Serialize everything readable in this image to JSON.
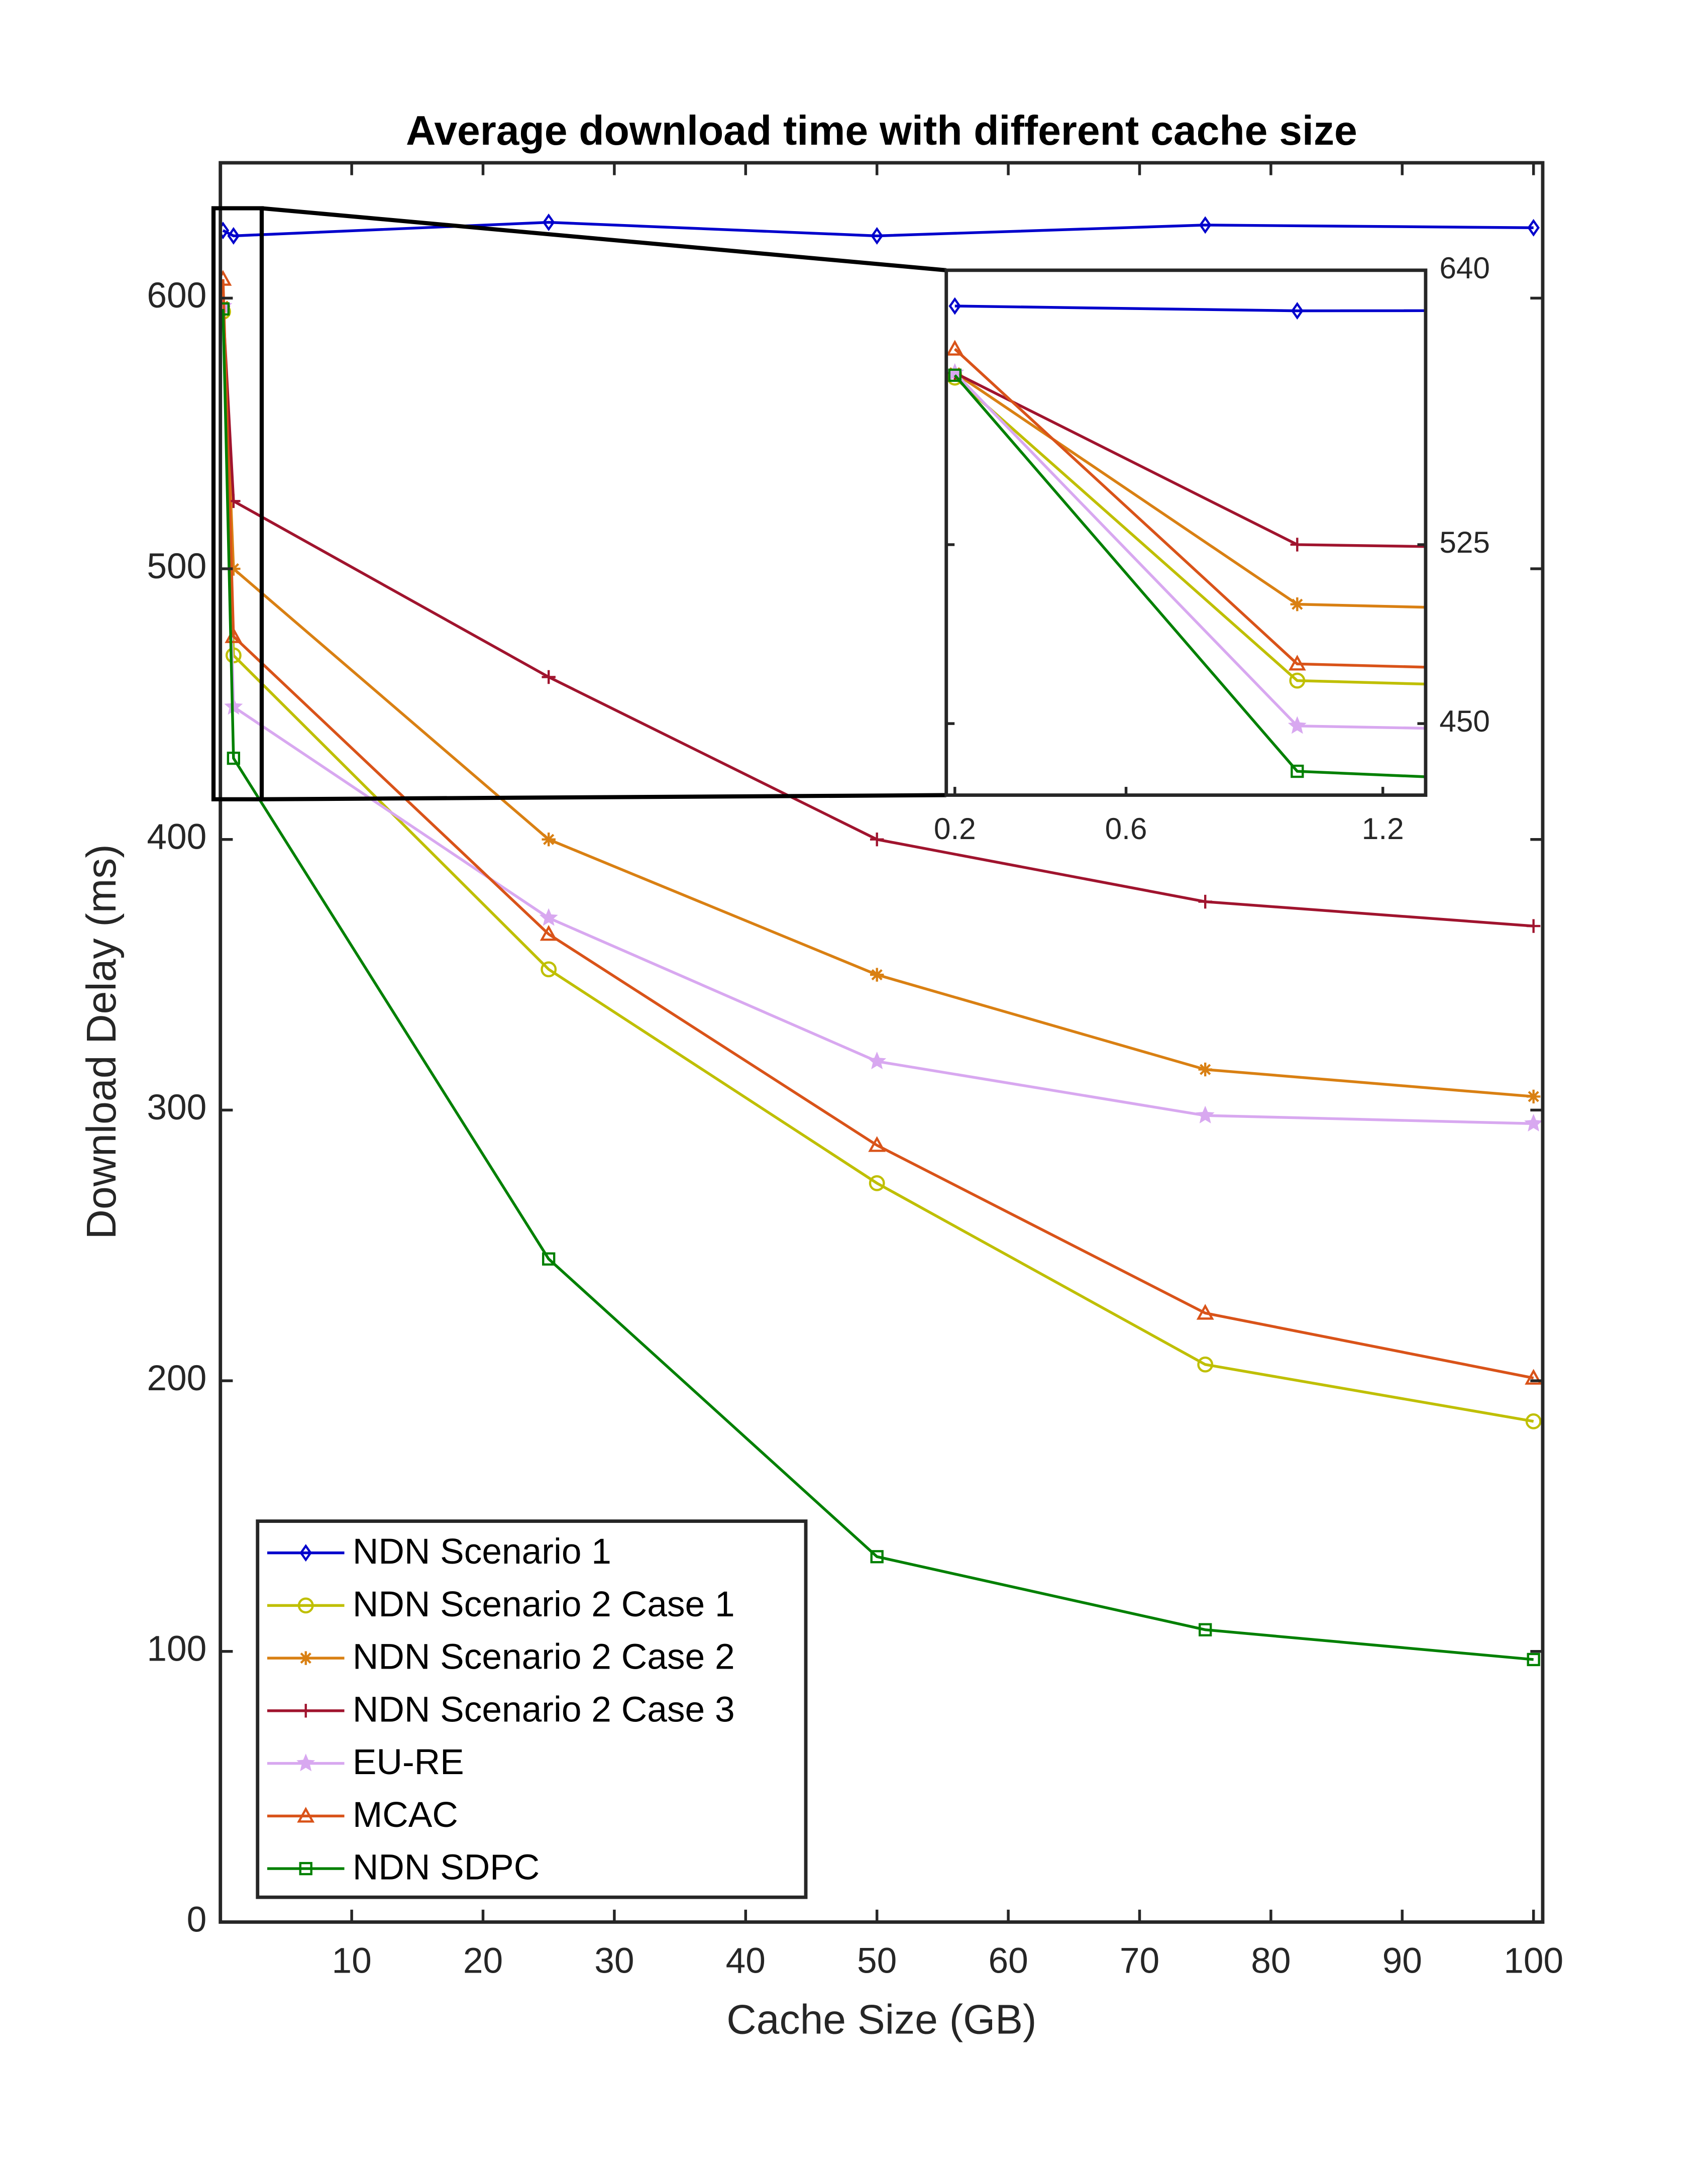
{
  "chart_data": {
    "type": "line",
    "title": "Average download time with different cache size",
    "xlabel": "Cache Size (GB)",
    "ylabel": "Download Delay (ms)",
    "x": [
      0.2,
      1,
      25,
      50,
      75,
      100
    ],
    "xlim": [
      0,
      100.7
    ],
    "ylim": [
      0,
      650
    ],
    "xticks": [
      10,
      20,
      30,
      40,
      50,
      60,
      70,
      80,
      90,
      100
    ],
    "yticks": [
      0,
      100,
      200,
      300,
      400,
      500,
      600
    ],
    "legend": "lower left",
    "series": [
      {
        "name": "NDN Scenario 1",
        "color": "#0000cc",
        "marker": "diamond",
        "values": [
          625,
          623,
          628,
          623,
          627,
          626
        ]
      },
      {
        "name": "NDN Scenario 2 Case 1",
        "color": "#bfbf00",
        "marker": "circle",
        "values": [
          595,
          468,
          352,
          273,
          206,
          185
        ]
      },
      {
        "name": "NDN Scenario 2 Case 2",
        "color": "#d98013",
        "marker": "asterisk",
        "values": [
          597,
          500,
          400,
          350,
          315,
          305
        ]
      },
      {
        "name": "NDN Scenario 2 Case 3",
        "color": "#a0142e",
        "marker": "plus",
        "values": [
          597,
          525,
          460,
          400,
          377,
          368
        ]
      },
      {
        "name": "EU-RE",
        "color": "#d8a8f0",
        "marker": "star",
        "values": [
          597,
          449,
          371,
          318,
          298,
          295
        ]
      },
      {
        "name": "MCAC",
        "color": "#d95319",
        "marker": "triangle",
        "values": [
          607,
          475,
          365,
          287,
          225,
          201
        ]
      },
      {
        "name": "NDN SDPC",
        "color": "#008000",
        "marker": "square",
        "values": [
          596,
          430,
          245,
          135,
          108,
          97
        ]
      }
    ],
    "inset": {
      "xlim": [
        0.18,
        1.3
      ],
      "ylim": [
        420,
        640
      ],
      "xticks": [
        0.2,
        0.6,
        1.2
      ],
      "yticks": [
        450,
        525,
        640
      ]
    }
  }
}
